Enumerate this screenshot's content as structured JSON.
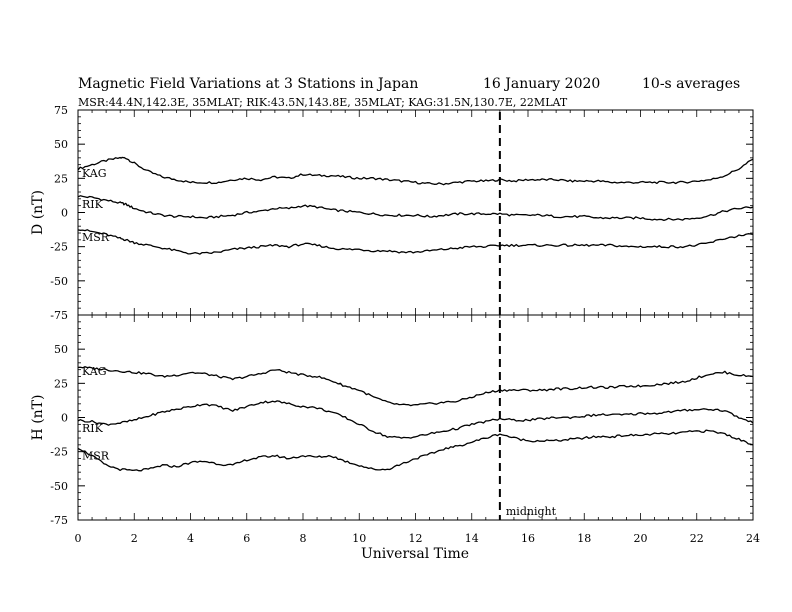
{
  "chart_data": {
    "type": "line",
    "title": "Magnetic Field Variations at 3 Stations in Japan",
    "date": "16 January  2020",
    "averaging": "10-s averages",
    "subtitle": "MSR:44.4N,142.3E, 35MLAT;  RIK:43.5N,143.8E, 35MLAT;  KAG:31.5N,130.7E, 22MLAT",
    "xlabel": "Universal Time",
    "xlim": [
      0,
      24
    ],
    "xticks": [
      "0",
      "2",
      "4",
      "6",
      "8",
      "10",
      "12",
      "14",
      "16",
      "18",
      "20",
      "22",
      "24"
    ],
    "grid": false,
    "annotation": {
      "label": "midnight",
      "x": 15
    },
    "panels": [
      {
        "ylabel": "D (nT)",
        "ylim": [
          -75,
          75
        ],
        "yticks": [
          "75",
          "50",
          "25",
          "0",
          "-25",
          "-50",
          "-75"
        ],
        "x": [
          0,
          0.5,
          1,
          1.5,
          1.7,
          2,
          2.5,
          3,
          3.5,
          4,
          4.5,
          5,
          5.5,
          6,
          6.5,
          7,
          7.5,
          8,
          8.5,
          9,
          9.5,
          10,
          10.5,
          11,
          11.5,
          12,
          12.5,
          13,
          13.5,
          14,
          14.5,
          15,
          15.5,
          16,
          16.5,
          17,
          17.5,
          18,
          18.5,
          19,
          19.5,
          20,
          20.5,
          21,
          21.5,
          22,
          22.5,
          23,
          23.5,
          24
        ],
        "series": [
          {
            "name": "KAG",
            "values": [
              32,
              35,
              38,
              40,
              40,
              36,
              30,
              26,
              24,
              22,
              22,
              22,
              24,
              25,
              24,
              26,
              25,
              28,
              27,
              27,
              26,
              25,
              25,
              24,
              23,
              22,
              21,
              21,
              22,
              23,
              23,
              24,
              23,
              24,
              24,
              24,
              23,
              23,
              23,
              22,
              22,
              22,
              22,
              22,
              22,
              23,
              24,
              27,
              32,
              39
            ]
          },
          {
            "name": "RIK",
            "values": [
              12,
              11,
              9,
              7,
              6,
              3,
              0,
              -2,
              -3,
              -3,
              -4,
              -3,
              -2,
              0,
              1,
              3,
              3,
              5,
              4,
              2,
              1,
              0,
              -1,
              -2,
              -2,
              -2,
              -3,
              -2,
              -1,
              -1,
              -1,
              -1,
              -2,
              -2,
              -2,
              -3,
              -3,
              -3,
              -4,
              -4,
              -4,
              -4,
              -5,
              -5,
              -5,
              -4,
              -2,
              1,
              3,
              4
            ]
          },
          {
            "name": "MSR",
            "values": [
              -12,
              -14,
              -16,
              -19,
              -20,
              -22,
              -24,
              -26,
              -28,
              -30,
              -30,
              -29,
              -27,
              -26,
              -25,
              -24,
              -25,
              -23,
              -24,
              -26,
              -27,
              -27,
              -28,
              -28,
              -29,
              -29,
              -28,
              -27,
              -26,
              -25,
              -25,
              -24,
              -24,
              -24,
              -24,
              -24,
              -24,
              -24,
              -24,
              -24,
              -25,
              -25,
              -25,
              -25,
              -25,
              -24,
              -22,
              -19,
              -17,
              -16
            ]
          }
        ]
      },
      {
        "ylabel": "H (nT)",
        "ylim": [
          -75,
          75
        ],
        "yticks": [
          "75",
          "50",
          "25",
          "0",
          "-25",
          "-50",
          "-75"
        ],
        "x": [
          0,
          0.5,
          1,
          1.5,
          2,
          2.5,
          3,
          3.5,
          4,
          4.5,
          5,
          5.5,
          6,
          6.5,
          7,
          7.5,
          8,
          8.5,
          9,
          9.5,
          10,
          10.5,
          11,
          11.5,
          12,
          12.5,
          13,
          13.5,
          14,
          14.5,
          15,
          15.5,
          16,
          16.5,
          17,
          17.5,
          18,
          18.5,
          19,
          19.5,
          20,
          20.5,
          21,
          21.5,
          22,
          22.5,
          23,
          23.5,
          24
        ],
        "series": [
          {
            "name": "KAG",
            "values": [
              37,
              36,
              35,
              34,
              33,
              32,
              30,
              31,
              33,
              32,
              30,
              28,
              30,
              32,
              35,
              33,
              31,
              30,
              27,
              23,
              20,
              15,
              11,
              9,
              9,
              10,
              11,
              12,
              15,
              18,
              20,
              20,
              20,
              20,
              21,
              21,
              22,
              22,
              22,
              23,
              23,
              24,
              25,
              26,
              29,
              32,
              33,
              31,
              30
            ]
          },
          {
            "name": "RIK",
            "values": [
              -2,
              -3,
              -5,
              -4,
              -2,
              1,
              4,
              6,
              8,
              10,
              8,
              5,
              8,
              11,
              12,
              10,
              8,
              7,
              4,
              0,
              -5,
              -10,
              -14,
              -15,
              -14,
              -12,
              -10,
              -8,
              -5,
              -3,
              -1,
              -2,
              -2,
              -1,
              0,
              0,
              1,
              2,
              2,
              2,
              3,
              3,
              4,
              5,
              6,
              6,
              5,
              0,
              -4
            ]
          },
          {
            "name": "MSR",
            "values": [
              -22,
              -28,
              -35,
              -38,
              -39,
              -38,
              -35,
              -36,
              -33,
              -32,
              -34,
              -35,
              -31,
              -29,
              -28,
              -30,
              -28,
              -29,
              -28,
              -32,
              -35,
              -38,
              -38,
              -34,
              -30,
              -27,
              -23,
              -21,
              -18,
              -15,
              -12,
              -15,
              -17,
              -17,
              -17,
              -16,
              -15,
              -14,
              -14,
              -13,
              -13,
              -12,
              -12,
              -11,
              -10,
              -10,
              -12,
              -16,
              -20
            ]
          }
        ]
      }
    ]
  }
}
